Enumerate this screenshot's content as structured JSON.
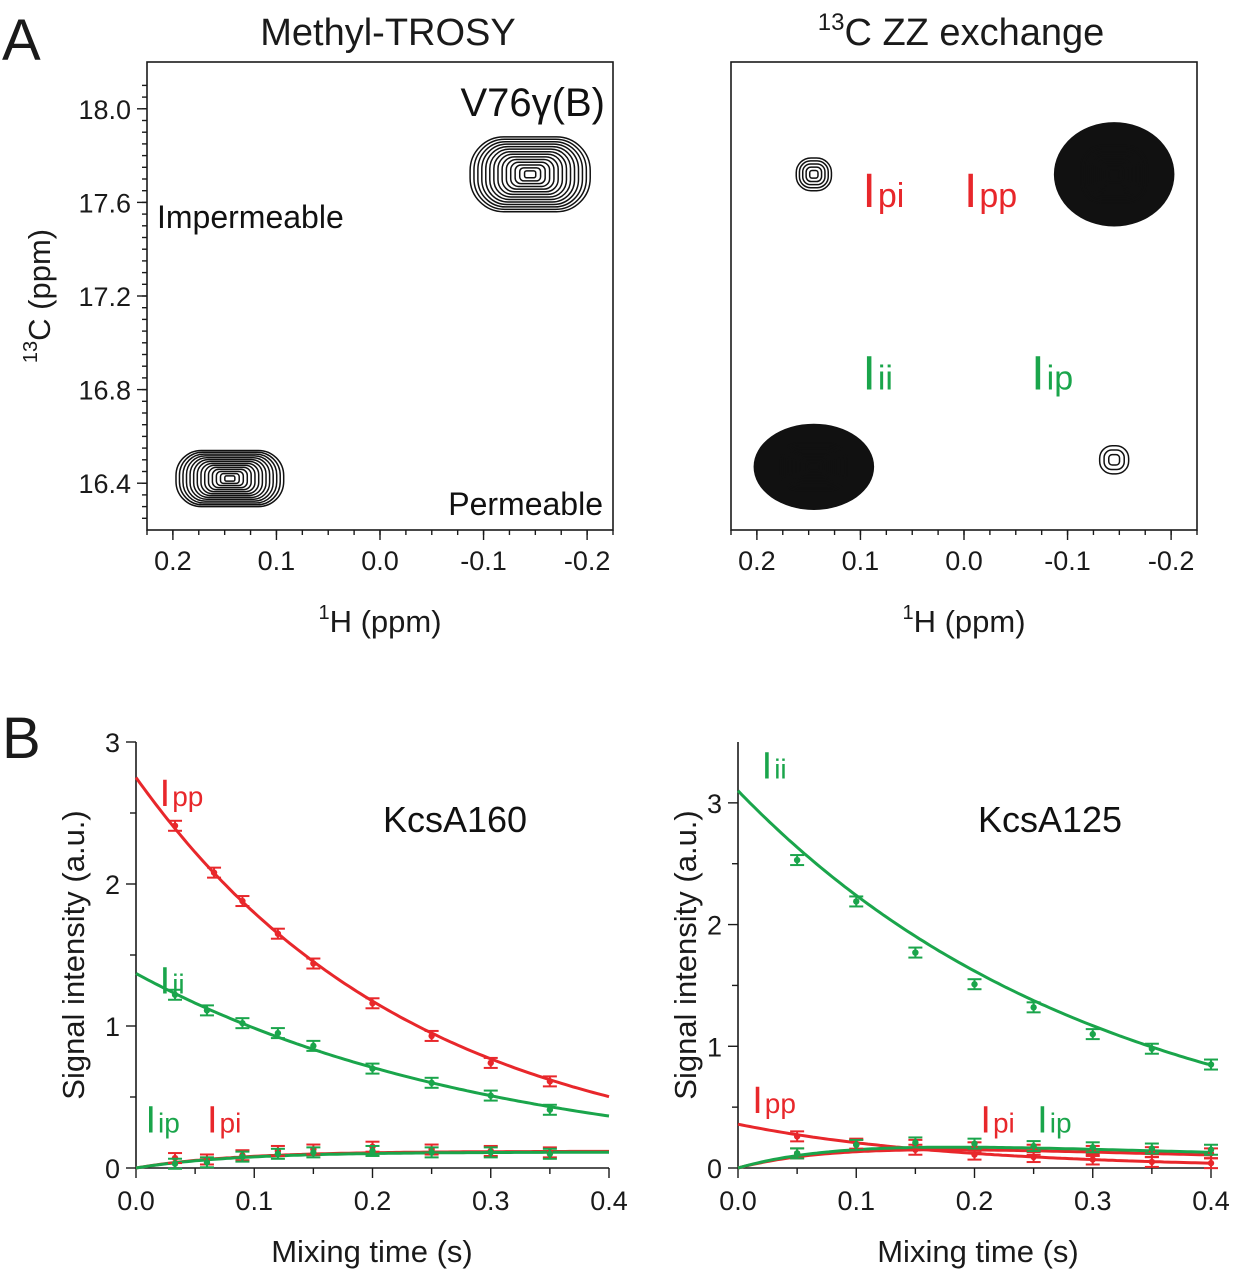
{
  "panel_letters": {
    "a": "A",
    "b": "B"
  },
  "colors": {
    "red": "#e8272b",
    "green": "#1aa54b",
    "dash": "#9a9a9a",
    "contour": "#111111"
  },
  "chart_data": [
    {
      "type": "contour",
      "title": "Methyl-TROSY",
      "annotation": "V76γ(B)",
      "xlabel_sup": "1",
      "xlabel": "H (ppm)",
      "ylabel_sup": "13",
      "ylabel": "C (ppm)",
      "xlim": [
        0.225,
        -0.225
      ],
      "ylim": [
        18.2,
        16.2
      ],
      "x_ticks": [
        0.2,
        0.1,
        0.0,
        -0.1,
        -0.2
      ],
      "x_tick_labels": [
        "0.2",
        "0.1",
        "0.0",
        "-0.1",
        "-0.2"
      ],
      "y_ticks": [
        16.4,
        16.8,
        17.2,
        17.6,
        18.0
      ],
      "y_tick_labels": [
        "16.4",
        "16.8",
        "17.2",
        "17.6",
        "18.0"
      ],
      "peaks": [
        {
          "label": "Impermeable",
          "h": 0.145,
          "c": 16.42,
          "rx": 0.052,
          "ry": 0.12,
          "levels": 14
        },
        {
          "label": "Permeable",
          "h": -0.145,
          "c": 17.72,
          "rx": 0.058,
          "ry": 0.16,
          "levels": 14
        }
      ]
    },
    {
      "type": "contour",
      "title_sup": "13",
      "title": "C ZZ exchange",
      "xlabel_sup": "1",
      "xlabel": "H (ppm)",
      "xlim": [
        0.225,
        -0.225
      ],
      "ylim": [
        18.2,
        16.2
      ],
      "x_ticks": [
        0.2,
        0.1,
        0.0,
        -0.1,
        -0.2
      ],
      "x_tick_labels": [
        "0.2",
        "0.1",
        "0.0",
        "-0.1",
        "-0.2"
      ],
      "peaks": [
        {
          "label": "Iii",
          "h": 0.145,
          "c": 16.47,
          "rx": 0.06,
          "ry": 0.19,
          "levels": 16,
          "fill": true
        },
        {
          "label": "Ipp",
          "h": -0.145,
          "c": 17.72,
          "rx": 0.06,
          "ry": 0.23,
          "levels": 16,
          "fill": true
        },
        {
          "label": "Iip",
          "h": -0.145,
          "c": 16.5,
          "rx": 0.014,
          "ry": 0.06,
          "levels": 3
        },
        {
          "label": "Ipi",
          "h": 0.145,
          "c": 17.72,
          "rx": 0.017,
          "ry": 0.07,
          "levels": 5
        }
      ],
      "labels": [
        {
          "text": "I",
          "sub": "ii",
          "color": "green",
          "h": 0.098,
          "c": 16.8
        },
        {
          "text": "I",
          "sub": "ip",
          "color": "green",
          "h": -0.065,
          "c": 16.8
        },
        {
          "text": "I",
          "sub": "pi",
          "color": "red",
          "h": 0.098,
          "c": 17.58
        },
        {
          "text": "I",
          "sub": "pp",
          "color": "red",
          "h": 0.0,
          "c": 17.58
        }
      ],
      "dashed_box": {
        "h": [
          0.145,
          -0.145
        ],
        "c": [
          16.5,
          17.72
        ]
      }
    },
    {
      "type": "line",
      "system": "KcsA160",
      "xlabel": "Mixing time (s)",
      "ylabel": "Signal intensity  (a.u.)",
      "xlim": [
        0.0,
        0.4
      ],
      "ylim": [
        0,
        3
      ],
      "x_ticks": [
        0.0,
        0.1,
        0.2,
        0.3,
        0.4
      ],
      "x_tick_labels": [
        "0.0",
        "0.1",
        "0.2",
        "0.3",
        "0.4"
      ],
      "y_ticks": [
        0,
        1,
        2,
        3
      ],
      "y_tick_labels": [
        "0",
        "1",
        "2",
        "3"
      ],
      "series": [
        {
          "name": "Ipp",
          "color": "red",
          "kind": "decay",
          "a": 2.75,
          "k": 4.25,
          "x": [
            0.033,
            0.066,
            0.09,
            0.12,
            0.15,
            0.2,
            0.25,
            0.3,
            0.35
          ],
          "y": [
            2.41,
            2.08,
            1.88,
            1.65,
            1.44,
            1.16,
            0.93,
            0.74,
            0.61
          ]
        },
        {
          "name": "Iii",
          "color": "green",
          "kind": "decay",
          "a": 1.37,
          "k": 3.3,
          "x": [
            0.033,
            0.06,
            0.09,
            0.12,
            0.15,
            0.2,
            0.25,
            0.3,
            0.35
          ],
          "y": [
            1.22,
            1.11,
            1.02,
            0.95,
            0.86,
            0.7,
            0.6,
            0.51,
            0.41
          ]
        },
        {
          "name": "Ipi",
          "color": "red",
          "kind": "rise",
          "a": 0.118,
          "k": 12,
          "x": [
            0.033,
            0.06,
            0.09,
            0.12,
            0.15,
            0.2,
            0.25,
            0.3,
            0.35
          ],
          "y": [
            0.07,
            0.06,
            0.09,
            0.12,
            0.13,
            0.15,
            0.13,
            0.12,
            0.11
          ]
        },
        {
          "name": "Iip",
          "color": "green",
          "kind": "rise",
          "a": 0.112,
          "k": 12,
          "x": [
            0.033,
            0.06,
            0.09,
            0.12,
            0.15,
            0.2,
            0.25,
            0.3,
            0.35
          ],
          "y": [
            0.03,
            0.04,
            0.08,
            0.1,
            0.11,
            0.12,
            0.11,
            0.11,
            0.1
          ]
        }
      ],
      "labels": [
        {
          "text": "I",
          "sub": "pp",
          "color": "red",
          "x": 0.02,
          "y": 2.55
        },
        {
          "text": "I",
          "sub": "ii",
          "color": "green",
          "x": 0.02,
          "y": 1.23
        },
        {
          "text": "I",
          "sub": "ip",
          "color": "green",
          "x": 0.008,
          "y": 0.25
        },
        {
          "text": "I",
          "sub": "pi",
          "color": "red",
          "x": 0.06,
          "y": 0.25
        }
      ]
    },
    {
      "type": "line",
      "system": "KcsA125",
      "xlabel": "Mixing time (s)",
      "ylabel": "Signal intensity  (a.u.)",
      "xlim": [
        0.0,
        0.4
      ],
      "ylim": [
        0,
        3.5
      ],
      "x_ticks": [
        0.0,
        0.1,
        0.2,
        0.3,
        0.4
      ],
      "x_tick_labels": [
        "0.0",
        "0.1",
        "0.2",
        "0.3",
        "0.4"
      ],
      "y_ticks": [
        0,
        1,
        2,
        3
      ],
      "y_tick_labels": [
        "0",
        "1",
        "2",
        "3"
      ],
      "series": [
        {
          "name": "Iii",
          "color": "green",
          "kind": "decay",
          "a": 3.1,
          "k": 3.25,
          "x": [
            0.05,
            0.1,
            0.15,
            0.2,
            0.25,
            0.3,
            0.35,
            0.4
          ],
          "y": [
            2.53,
            2.19,
            1.77,
            1.51,
            1.32,
            1.1,
            0.98,
            0.85
          ]
        },
        {
          "name": "Ipp",
          "color": "red",
          "kind": "decay",
          "a": 0.36,
          "k": 5.5,
          "x": [
            0.05,
            0.1,
            0.15,
            0.2,
            0.25,
            0.3,
            0.35,
            0.4
          ],
          "y": [
            0.26,
            0.2,
            0.15,
            0.11,
            0.09,
            0.07,
            0.05,
            0.04
          ]
        },
        {
          "name": "Ipi",
          "color": "red",
          "kind": "risefall",
          "a": 0.3,
          "k1": 11,
          "k2": 2.5,
          "x": [
            0.05,
            0.1,
            0.15,
            0.2,
            0.25,
            0.3,
            0.35,
            0.4
          ],
          "y": [
            0.12,
            0.19,
            0.19,
            0.17,
            0.15,
            0.14,
            0.13,
            0.12
          ]
        },
        {
          "name": "Iip",
          "color": "green",
          "kind": "risefall",
          "a": 0.32,
          "k1": 11,
          "k2": 2.2,
          "x": [
            0.05,
            0.1,
            0.15,
            0.2,
            0.25,
            0.3,
            0.35,
            0.4
          ],
          "y": [
            0.12,
            0.19,
            0.21,
            0.2,
            0.18,
            0.17,
            0.16,
            0.15
          ]
        }
      ],
      "labels": [
        {
          "text": "I",
          "sub": "ii",
          "color": "green",
          "x": 0.02,
          "y": 3.2
        },
        {
          "text": "I",
          "sub": "pp",
          "color": "red",
          "x": 0.012,
          "y": 0.45
        },
        {
          "text": "I",
          "sub": "pi",
          "color": "red",
          "x": 0.205,
          "y": 0.29
        },
        {
          "text": "I",
          "sub": "ip",
          "color": "green",
          "x": 0.253,
          "y": 0.29
        }
      ]
    }
  ]
}
